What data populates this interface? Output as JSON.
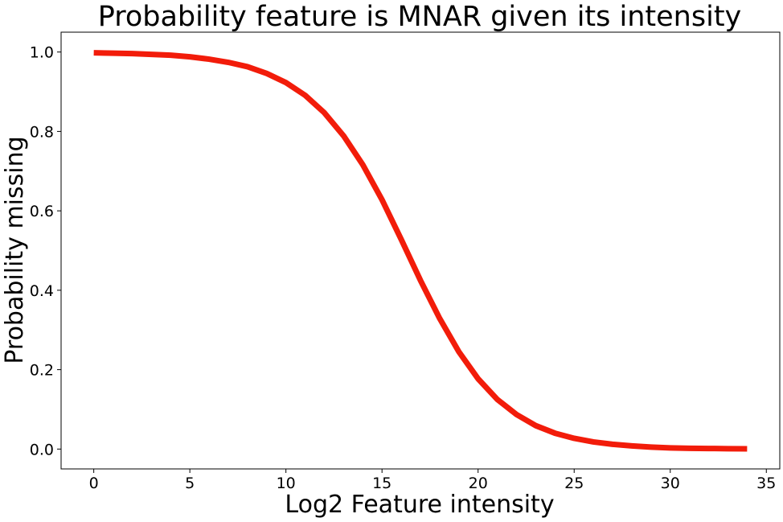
{
  "chart_data": {
    "type": "line",
    "title": "Probability feature is MNAR given its intensity",
    "xlabel": "Log2 Feature intensity",
    "ylabel": "Probability missing",
    "xlim": [
      -1.7,
      35.7
    ],
    "ylim": [
      -0.05,
      1.05
    ],
    "xticks": [
      0,
      5,
      10,
      15,
      20,
      25,
      30,
      35
    ],
    "yticks": [
      0.0,
      0.2,
      0.4,
      0.6,
      0.8,
      1.0
    ],
    "xtick_labels": [
      "0",
      "5",
      "10",
      "15",
      "20",
      "25",
      "30",
      "35"
    ],
    "ytick_labels": [
      "0.0",
      "0.2",
      "0.4",
      "0.6",
      "0.8",
      "1.0"
    ],
    "grid": false,
    "series": [
      {
        "color": "#f21c0a",
        "x": [
          0,
          1,
          2,
          3,
          4,
          5,
          6,
          7,
          8,
          9,
          10,
          11,
          12,
          13,
          14,
          15,
          16,
          17,
          18,
          19,
          20,
          21,
          22,
          23,
          24,
          25,
          26,
          27,
          28,
          29,
          30,
          31,
          32,
          33,
          34
        ],
        "y": [
          0.998,
          0.997,
          0.996,
          0.994,
          0.992,
          0.988,
          0.982,
          0.974,
          0.963,
          0.946,
          0.923,
          0.891,
          0.847,
          0.789,
          0.716,
          0.628,
          0.528,
          0.425,
          0.329,
          0.245,
          0.177,
          0.125,
          0.087,
          0.059,
          0.04,
          0.027,
          0.018,
          0.012,
          0.008,
          0.005,
          0.003,
          0.002,
          0.0015,
          0.001,
          0.0007
        ]
      }
    ]
  }
}
